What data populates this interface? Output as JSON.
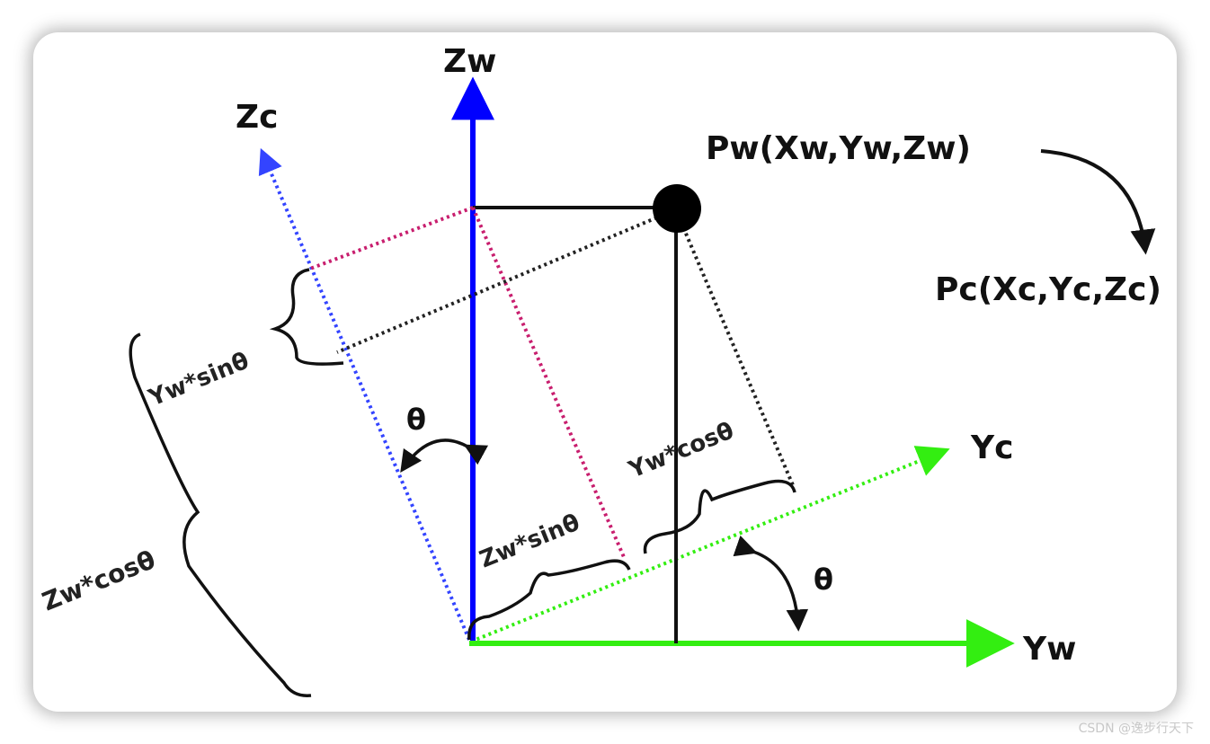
{
  "labels": {
    "zw_axis": "Zw",
    "zc_axis": "Zc",
    "yc_axis": "Yc",
    "yw_axis": "Yw",
    "point_world": "Pw(Xw,Yw,Zw)",
    "point_camera": "Pc(Xc,Yc,Zc)",
    "theta_top": "θ",
    "theta_bottom": "θ",
    "yw_sin": "Yw*sinθ",
    "zw_cos": "Zw*cosθ",
    "zw_sin": "Zw*sinθ",
    "yw_cos": "Yw*cosθ"
  },
  "watermark": "CSDN @逸步行天下",
  "colors": {
    "zw_axis": "#0000ff",
    "zc_axis": "#3344ff",
    "yw_axis": "#33ee11",
    "yc_axis": "#33ee11",
    "zw_projection": "#c81e6e",
    "point": "#000000"
  }
}
